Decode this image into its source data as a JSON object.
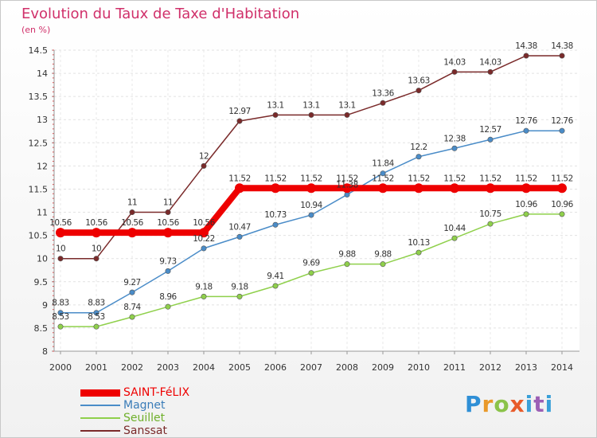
{
  "header": {
    "title": "Evolution du Taux de Taxe d'Habitation",
    "subtitle": "(en %)"
  },
  "logo": {
    "text": "Proxiti"
  },
  "chart_data": {
    "type": "line",
    "title": "Evolution du Taux de Taxe d'Habitation",
    "subtitle": "(en %)",
    "xlabel": "",
    "ylabel": "",
    "x": [
      "2000",
      "2001",
      "2002",
      "2003",
      "2004",
      "2005",
      "2006",
      "2007",
      "2008",
      "2009",
      "2010",
      "2011",
      "2012",
      "2013",
      "2014"
    ],
    "ylim": [
      8,
      14.5
    ],
    "yticks": [
      "8",
      "8.5",
      "9",
      "9.5",
      "10",
      "10.5",
      "11",
      "11.5",
      "12",
      "12.5",
      "13",
      "13.5",
      "14",
      "14.5"
    ],
    "grid": true,
    "legend_position": "bottom-left",
    "series": [
      {
        "name": "SAINT-FéLIX",
        "color": "#ee0000",
        "labels": [
          "10.56",
          "10.56",
          "10.56",
          "10.56",
          "10.56",
          "11.52",
          "11.52",
          "11.52",
          "11.52",
          "11.52",
          "11.52",
          "11.52",
          "11.52",
          "11.52",
          "11.52"
        ],
        "values": [
          10.56,
          10.56,
          10.56,
          10.56,
          10.56,
          11.52,
          11.52,
          11.52,
          11.52,
          11.52,
          11.52,
          11.52,
          11.52,
          11.52,
          11.52
        ]
      },
      {
        "name": "Magnet",
        "color": "#4a8cc8",
        "labels": [
          "8.83",
          "8.83",
          "9.27",
          "9.73",
          "10.22",
          "10.47",
          "10.73",
          "10.94",
          "11.38",
          "11.84",
          "12.2",
          "12.38",
          "12.57",
          "12.76",
          "12.76"
        ],
        "values": [
          8.83,
          8.83,
          9.27,
          9.73,
          10.22,
          10.47,
          10.73,
          10.94,
          11.38,
          11.84,
          12.2,
          12.38,
          12.57,
          12.76,
          12.76
        ]
      },
      {
        "name": "Seuillet",
        "color": "#8fd04b",
        "labels": [
          "8.53",
          "8.53",
          "8.74",
          "8.96",
          "9.18",
          "9.18",
          "9.41",
          "9.69",
          "9.88",
          "9.88",
          "10.13",
          "10.44",
          "10.75",
          "10.96",
          "10.96"
        ],
        "values": [
          8.53,
          8.53,
          8.74,
          8.96,
          9.18,
          9.18,
          9.41,
          9.69,
          9.88,
          9.88,
          10.13,
          10.44,
          10.75,
          10.96,
          10.96
        ]
      },
      {
        "name": "Sanssat",
        "color": "#7a2a2a",
        "labels": [
          "10",
          "10",
          "11",
          "11",
          "12",
          "12.97",
          "13.1",
          "13.1",
          "13.1",
          "13.36",
          "13.63",
          "14.03",
          "14.03",
          "14.38",
          "14.38"
        ],
        "values": [
          10,
          10,
          11,
          11,
          12,
          12.97,
          13.1,
          13.1,
          13.1,
          13.36,
          13.63,
          14.03,
          14.03,
          14.38,
          14.38
        ]
      }
    ]
  }
}
